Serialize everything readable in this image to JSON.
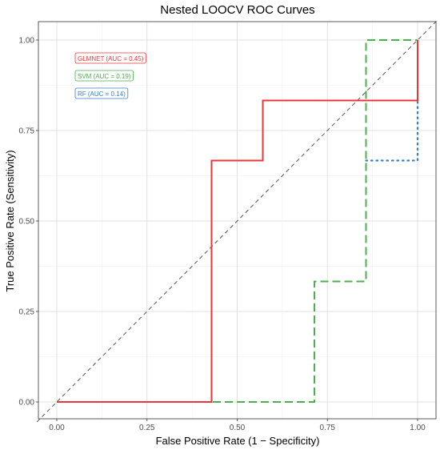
{
  "chart_data": {
    "type": "line",
    "title": "Nested LOOCV ROC Curves",
    "xlabel": "False Positive Rate (1 − Specificity)",
    "ylabel": "True Positive Rate (Sensitivity)",
    "xlim": [
      0,
      1
    ],
    "ylim": [
      0,
      1
    ],
    "x_ticks": [
      "0.00",
      "0.25",
      "0.50",
      "0.75",
      "1.00"
    ],
    "y_ticks": [
      "0.00",
      "0.25",
      "0.50",
      "0.75",
      "1.00"
    ],
    "grid": true,
    "legend_position": "top-left",
    "reference_line": {
      "x": [
        0,
        1
      ],
      "y": [
        0,
        1
      ],
      "color": "#555555",
      "style": "dashed"
    },
    "series": [
      {
        "name": "GLMNET (AUC = 0.45)",
        "color": "#e8383b",
        "style": "solid",
        "x": [
          0,
          0.429,
          0.429,
          0.571,
          0.571,
          1.0,
          1.0
        ],
        "y": [
          0,
          0,
          0.667,
          0.667,
          0.833,
          0.833,
          1.0
        ]
      },
      {
        "name": "SVM (AUC = 0.19)",
        "color": "#4caf50",
        "style": "dashed",
        "x": [
          0,
          0.714,
          0.714,
          0.857,
          0.857,
          1.0
        ],
        "y": [
          0,
          0,
          0.333,
          0.333,
          1.0,
          1.0
        ]
      },
      {
        "name": "RF (AUC = 0.14)",
        "color": "#3a7fc1",
        "style": "dotted",
        "x": [
          0.857,
          1.0,
          1.0
        ],
        "y": [
          0.667,
          0.667,
          0.833
        ]
      }
    ]
  }
}
